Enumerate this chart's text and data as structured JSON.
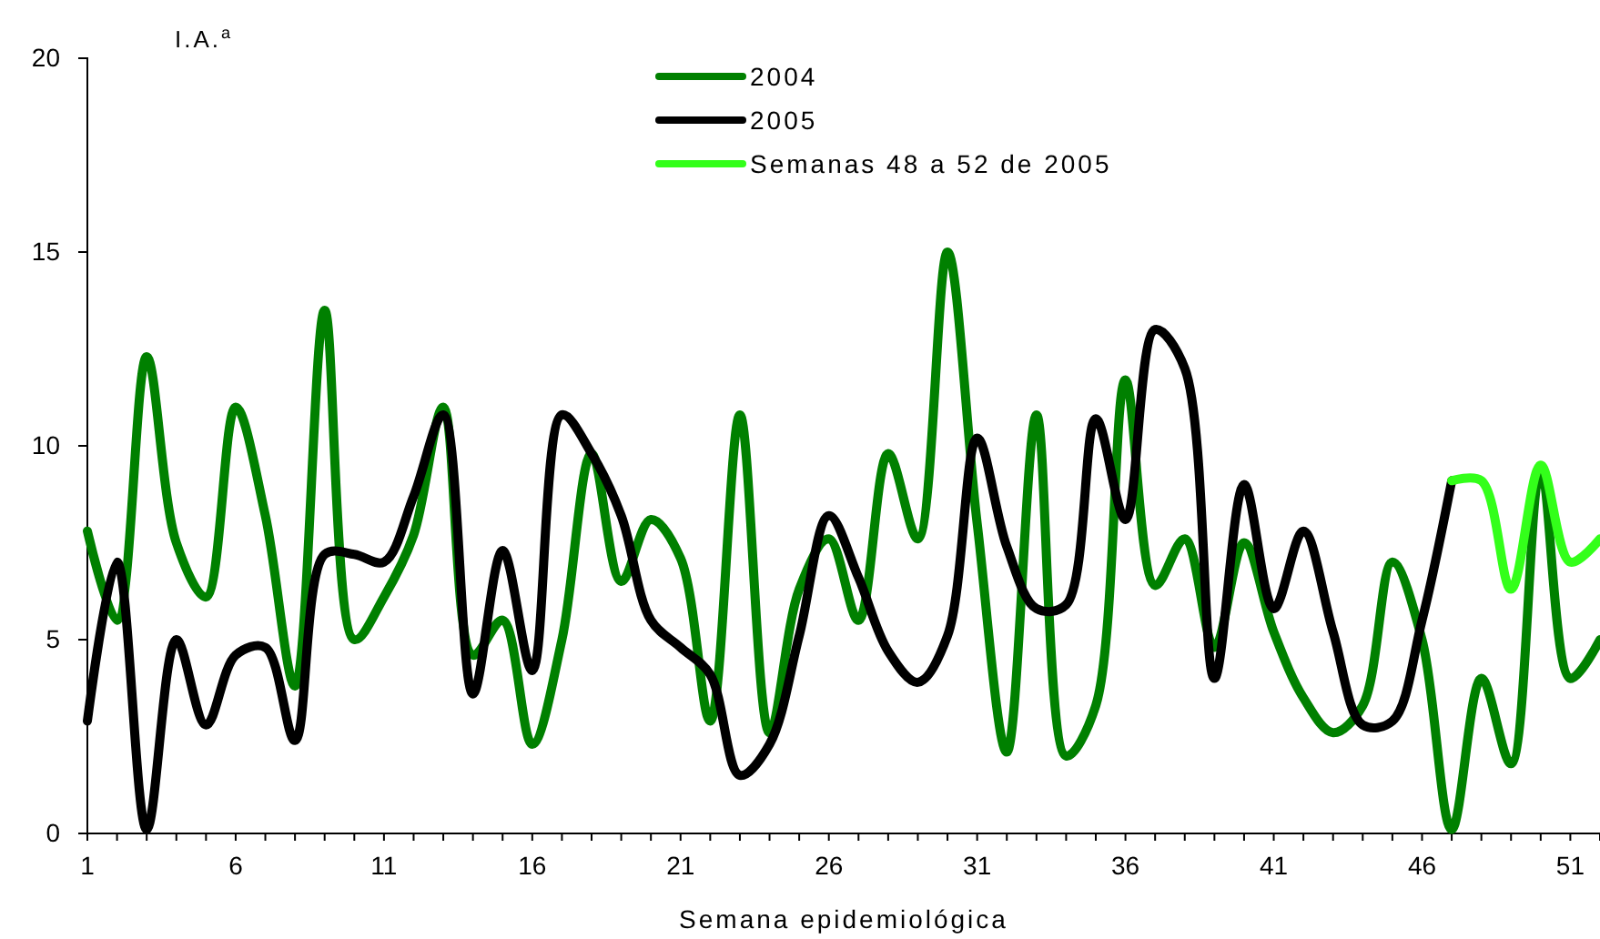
{
  "chart_data": {
    "type": "line",
    "xlabel": "Semana epidemiológica",
    "ylabel": "I.A.$^{a}$",
    "xlim": [
      1,
      52
    ],
    "ylim": [
      0,
      20
    ],
    "yticks": [
      0,
      5,
      10,
      15,
      20
    ],
    "xticks": [
      1,
      {
        "value": 2,
        "label": null
      },
      {
        "value": 3,
        "label": null
      },
      {
        "value": 4,
        "label": null
      },
      {
        "value": 5,
        "label": null
      },
      6,
      {
        "value": 7,
        "label": null
      },
      {
        "value": 8,
        "label": null
      },
      {
        "value": 9,
        "label": null
      },
      {
        "value": 10,
        "label": null
      },
      11,
      {
        "value": 12,
        "label": null
      },
      {
        "value": 13,
        "label": null
      },
      {
        "value": 14,
        "label": null
      },
      {
        "value": 15,
        "label": null
      },
      16,
      {
        "value": 17,
        "label": null
      },
      {
        "value": 18,
        "label": null
      },
      {
        "value": 19,
        "label": null
      },
      {
        "value": 20,
        "label": null
      },
      21,
      {
        "value": 22,
        "label": null
      },
      {
        "value": 23,
        "label": null
      },
      {
        "value": 24,
        "label": null
      },
      {
        "value": 25,
        "label": null
      },
      26,
      {
        "value": 27,
        "label": null
      },
      {
        "value": 28,
        "label": null
      },
      {
        "value": 29,
        "label": null
      },
      {
        "value": 30,
        "label": null
      },
      31,
      {
        "value": 32,
        "label": null
      },
      {
        "value": 33,
        "label": null
      },
      {
        "value": 34,
        "label": null
      },
      {
        "value": 35,
        "label": null
      },
      36,
      {
        "value": 37,
        "label": null
      },
      {
        "value": 38,
        "label": null
      },
      {
        "value": 39,
        "label": null
      },
      {
        "value": 40,
        "label": null
      },
      41,
      {
        "value": 42,
        "label": null
      },
      {
        "value": 43,
        "label": null
      },
      {
        "value": 44,
        "label": null
      },
      {
        "value": 45,
        "label": null
      },
      46,
      {
        "value": 47,
        "label": null
      },
      {
        "value": 48,
        "label": null
      },
      {
        "value": 49,
        "label": null
      },
      {
        "value": 50,
        "label": null
      },
      51,
      {
        "value": 52,
        "label": null
      }
    ],
    "grid": false,
    "legend": "top",
    "marker": "none",
    "line_style": "solid",
    "series": [
      {
        "name": "2004",
        "color": "#008000",
        "x": [
          1,
          2,
          3,
          4,
          5,
          6,
          7,
          8,
          9,
          10,
          11,
          12,
          13,
          14,
          15,
          16,
          17,
          18,
          19,
          20,
          21,
          22,
          23,
          24,
          25,
          26,
          27,
          28,
          29,
          30,
          31,
          32,
          33,
          34,
          35,
          36,
          37,
          38,
          39,
          40,
          41,
          42,
          43,
          44,
          45,
          46,
          47,
          48,
          49,
          50,
          51,
          52
        ],
        "values": [
          7.8,
          5.5,
          12.3,
          7.5,
          6.1,
          11.0,
          8.2,
          3.8,
          13.5,
          5.0,
          6.1,
          7.7,
          11.0,
          4.6,
          5.5,
          2.3,
          5.0,
          9.8,
          6.5,
          8.1,
          7.1,
          2.9,
          10.8,
          2.6,
          6.3,
          7.6,
          5.5,
          9.8,
          7.6,
          15.0,
          8.0,
          2.1,
          10.8,
          2.0,
          3.3,
          11.7,
          6.4,
          7.6,
          4.8,
          7.5,
          5.2,
          3.5,
          2.6,
          3.3,
          7.0,
          5.0,
          0.1,
          4.0,
          1.8,
          9.4,
          4.0,
          5.0
        ]
      },
      {
        "name": "2005",
        "color": "#000000",
        "x": [
          1,
          2,
          3,
          4,
          5,
          6,
          7,
          8,
          9,
          10,
          11,
          12,
          13,
          14,
          15,
          16,
          17,
          18,
          19,
          20,
          21,
          22,
          23,
          24,
          25,
          26,
          27,
          28,
          29,
          30,
          31,
          32,
          33,
          34,
          35,
          36,
          37,
          38,
          39,
          40,
          41,
          42,
          43,
          44,
          45,
          46,
          47
        ],
        "values": [
          2.9,
          7.0,
          0.1,
          5.0,
          2.8,
          4.6,
          4.8,
          2.4,
          7.2,
          7.2,
          7.0,
          8.7,
          10.8,
          3.6,
          7.3,
          4.2,
          10.8,
          9.8,
          8.2,
          5.5,
          4.8,
          4.1,
          1.5,
          2.3,
          5.1,
          8.2,
          6.6,
          4.7,
          3.9,
          5.1,
          10.2,
          7.4,
          5.8,
          5.9,
          10.7,
          8.1,
          13.0,
          12.0,
          4.0,
          9.0,
          5.8,
          7.8,
          5.2,
          2.8,
          2.9,
          5.5,
          9.1
        ]
      },
      {
        "name": "Semanas 48 a 52 de 2005",
        "color": "#33ff1a",
        "x": [
          47,
          48,
          49,
          50,
          51,
          52
        ],
        "values": [
          9.1,
          9.1,
          6.3,
          9.5,
          7.0,
          7.6
        ]
      }
    ]
  }
}
